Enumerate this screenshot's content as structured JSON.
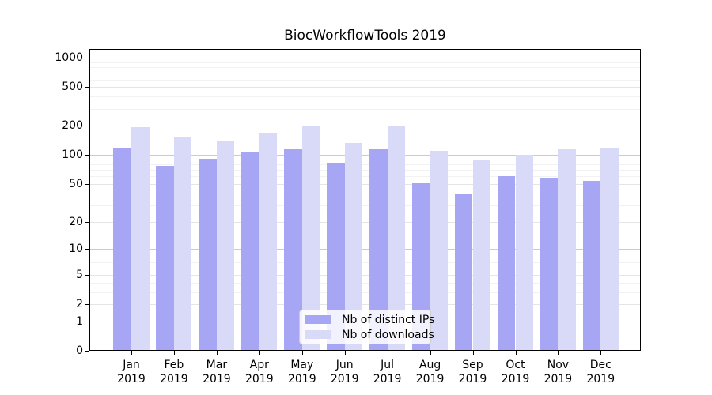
{
  "chart_data": {
    "type": "bar",
    "title": "BiocWorkflowTools 2019",
    "categories": [
      "Jan",
      "Feb",
      "Mar",
      "Apr",
      "May",
      "Jun",
      "Jul",
      "Aug",
      "Sep",
      "Oct",
      "Nov",
      "Dec"
    ],
    "category_year_label": "2019",
    "series": [
      {
        "name": "Nb of distinct IPs",
        "color": "#a6a6f4",
        "values": [
          120,
          78,
          92,
          106,
          115,
          84,
          117,
          51,
          40,
          61,
          58,
          54
        ]
      },
      {
        "name": "Nb of downloads",
        "color": "#d9d9f8",
        "values": [
          195,
          154,
          138,
          170,
          202,
          134,
          202,
          110,
          88,
          100,
          118,
          120
        ]
      }
    ],
    "y_axis": {
      "scale": "symlog",
      "ticks": [
        0,
        1,
        2,
        5,
        10,
        20,
        50,
        100,
        200,
        500,
        1000
      ],
      "min": 0,
      "max_tick": 1000
    },
    "x_axis": {
      "tick_labels_two_lines": true
    },
    "legend": {
      "location": "lower center",
      "entries": [
        "Nb of distinct IPs",
        "Nb of downloads"
      ]
    },
    "grid": {
      "shown": true,
      "color_major": "#cbcbcb",
      "color_mid": "#e5e5e5",
      "color_minor": "#f2f2f2"
    },
    "colors": {
      "background": "#ffffff",
      "axis": "#000000",
      "text": "#000000",
      "bar_distinct_ips": "#a6a6f4",
      "bar_downloads": "#d9d9f8"
    }
  }
}
